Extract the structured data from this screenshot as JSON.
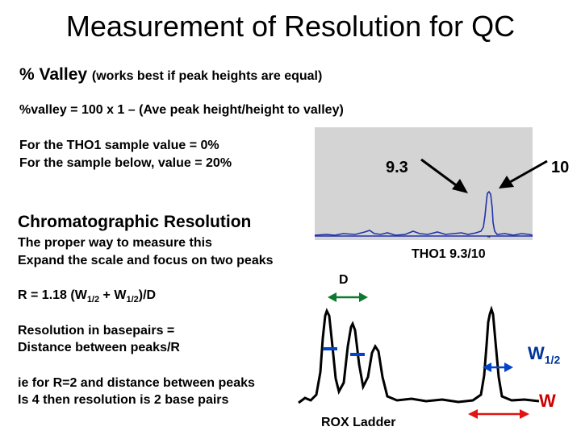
{
  "title": "Measurement of Resolution for QC",
  "valley": {
    "heading": "% Valley",
    "note": "(works best if peak heights are equal)",
    "formula": "%valley =   100  x 1 – (Ave peak height/height to valley)",
    "tho1_value": "For the THO1 sample value = 0%",
    "sample_value": "For the sample below, value = 20%"
  },
  "resolution": {
    "heading": "Chromatographic Resolution",
    "proper": "The proper way to measure this",
    "expand": "Expand the scale and focus on two peaks",
    "formula_prefix": "R = 1.18 (W",
    "formula_sub1": "1/2",
    "formula_mid": " + W",
    "formula_sub2": "1/2",
    "formula_suffix": ")/D",
    "bp_line1": "Resolution in basepairs =",
    "bp_line2": "Distance between peaks/R",
    "ie_line1": "ie for R=2 and distance between peaks",
    "ie_line2": "Is 4 then resolution is 2 base pairs"
  },
  "graph": {
    "label_1": "9.3",
    "label_2": "10",
    "caption": "THO1   9.3/10",
    "d_label": "D",
    "w_half_main": "W",
    "w_half_sub": "1/2",
    "w_label": "W",
    "rox_label": "ROX Ladder"
  },
  "colors": {
    "panel": "#d4d4d4",
    "trace": "#2233aa",
    "green": "#0b7a2e",
    "blue": "#0044cc",
    "red": "#e01414"
  }
}
